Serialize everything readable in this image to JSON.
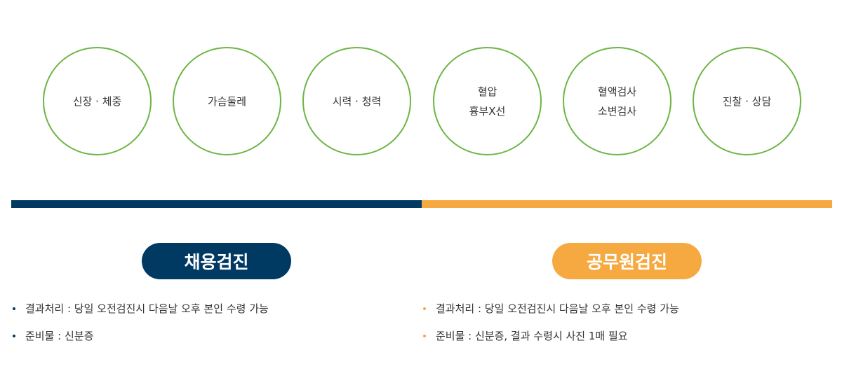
{
  "colors": {
    "circle_border": "#6cb544",
    "employment": "#003a63",
    "civil": "#f7a941"
  },
  "items": [
    {
      "lines": [
        "신장 · 체중"
      ]
    },
    {
      "lines": [
        "가슴둘레"
      ]
    },
    {
      "lines": [
        "시력 · 청력"
      ]
    },
    {
      "lines": [
        "혈압",
        "흉부X선"
      ]
    },
    {
      "lines": [
        "혈액검사",
        "소변검사"
      ]
    },
    {
      "lines": [
        "진찰 · 상담"
      ]
    }
  ],
  "employment": {
    "title": "채용검진",
    "notes": [
      "결과처리 : 당일 오전검진시 다음날 오후 본인 수령 가능",
      "준비물 : 신분증"
    ]
  },
  "civil": {
    "title": "공무원검진",
    "notes": [
      "결과처리 : 당일 오전검진시 다음날 오후 본인 수령 가능",
      "준비물 : 신분증, 결과 수령시 사진 1매 필요"
    ]
  }
}
